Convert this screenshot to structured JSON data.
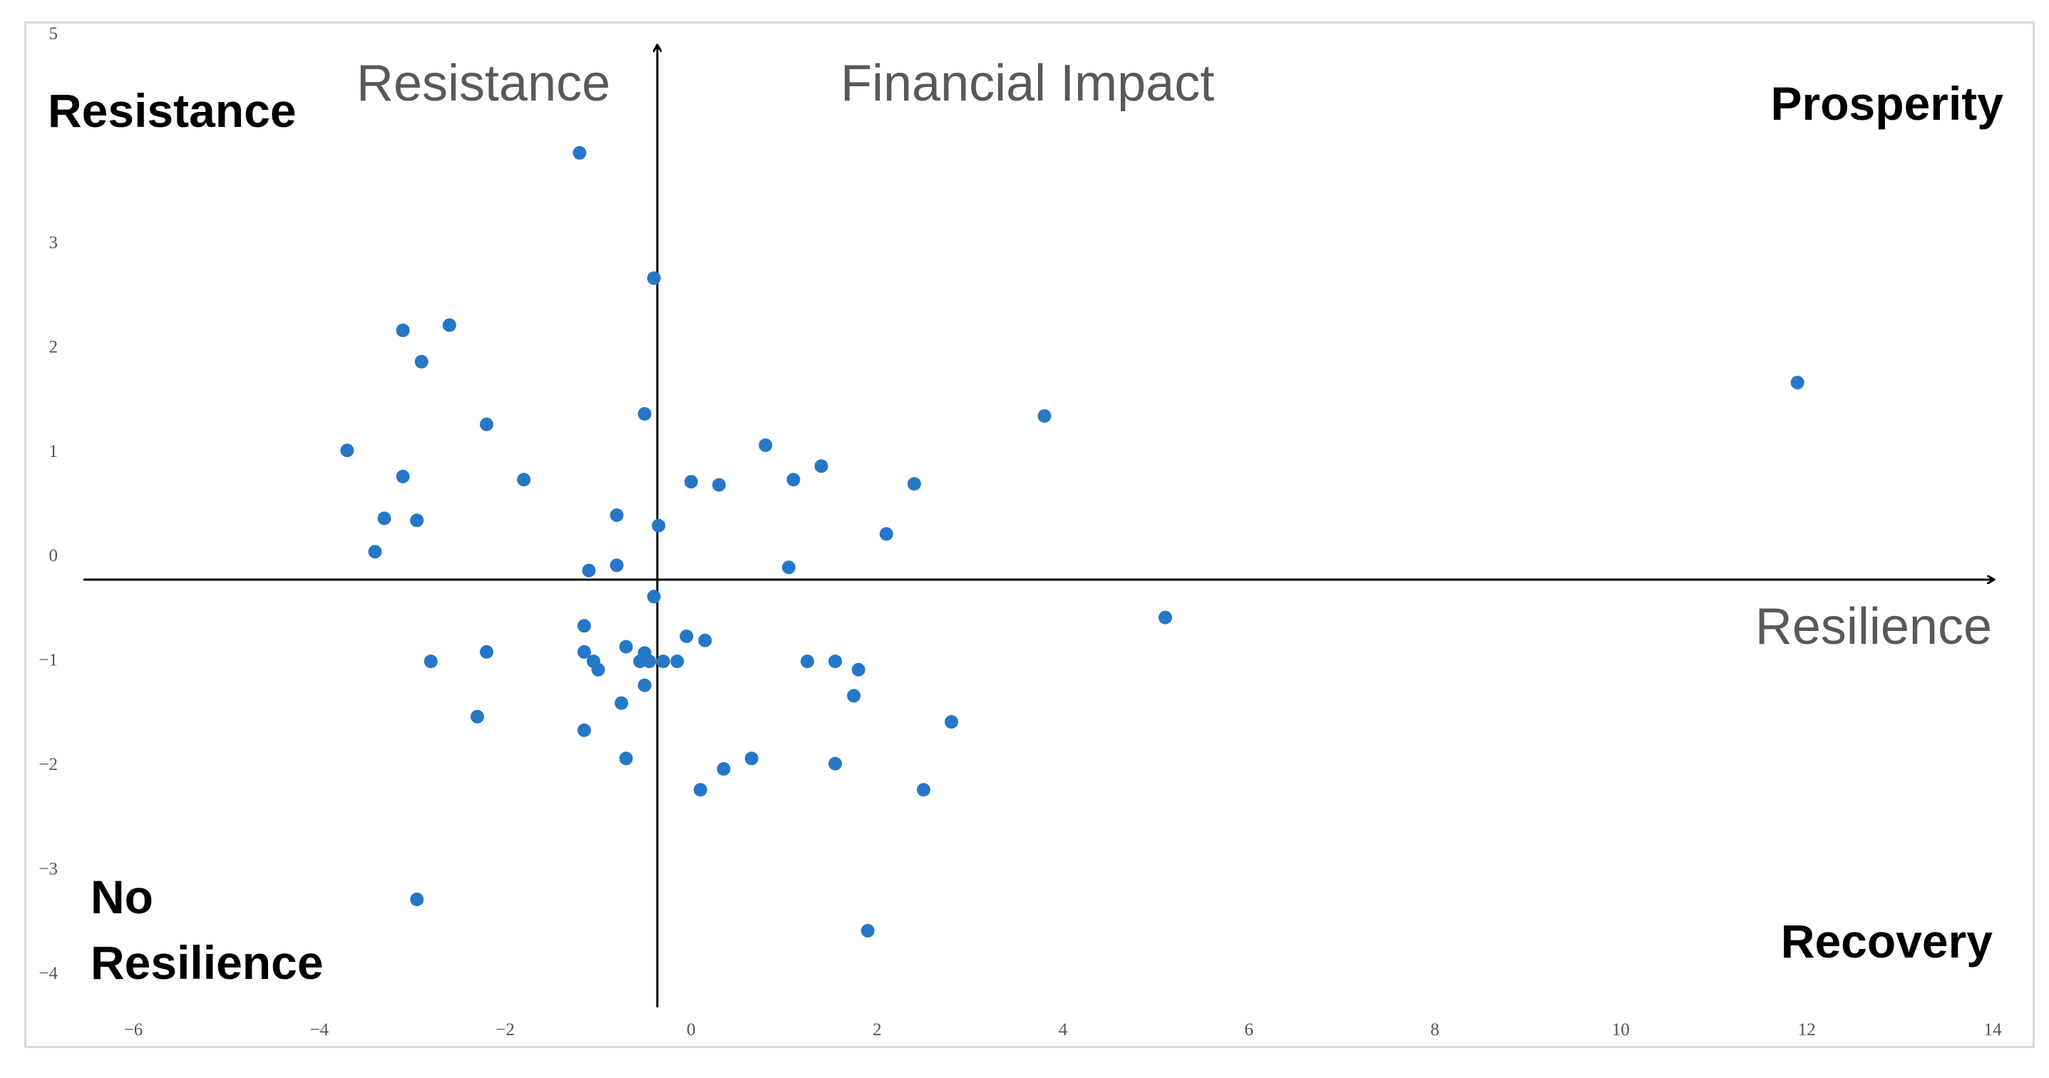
{
  "chart_data": {
    "type": "scatter",
    "title": "",
    "xlabel": "Resilience",
    "ylabel": "Financial Impact",
    "xlim": [
      -6,
      14
    ],
    "ylim": [
      -4,
      5
    ],
    "x_ticks": [
      -6,
      -4,
      -2,
      0,
      2,
      4,
      6,
      8,
      10,
      12,
      14
    ],
    "y_ticks": [
      -4,
      -3,
      -2,
      -1,
      0,
      1,
      2,
      3,
      5
    ],
    "tick_labels": {
      "x": [
        "−6",
        "−4",
        "−2",
        "0",
        "2",
        "4",
        "6",
        "8",
        "10",
        "12",
        "14"
      ],
      "y": [
        "−4",
        "−3",
        "−2",
        "−1",
        "0",
        "1",
        "2",
        "3",
        "5"
      ]
    },
    "grid": false,
    "point_color": "#2677c8",
    "annotations": {
      "top_left_small": "Resistance",
      "top_left_bold": "Resistance",
      "top_right_bold": "Prosperity",
      "bottom_left_bold_line1": "No",
      "bottom_left_bold_line2": "Resilience",
      "bottom_right_bold": "Recovery"
    },
    "series": [
      {
        "points": [
          [
            -1.2,
            3.85
          ],
          [
            -0.4,
            2.65
          ],
          [
            -2.6,
            2.2
          ],
          [
            -3.1,
            2.15
          ],
          [
            -2.9,
            1.85
          ],
          [
            -3.7,
            1.0
          ],
          [
            -2.2,
            1.25
          ],
          [
            -0.5,
            1.35
          ],
          [
            -3.1,
            0.75
          ],
          [
            -1.8,
            0.72
          ],
          [
            -3.3,
            0.35
          ],
          [
            -2.95,
            0.33
          ],
          [
            -0.8,
            0.38
          ],
          [
            -0.35,
            0.28
          ],
          [
            -3.4,
            0.03
          ],
          [
            0.0,
            0.7
          ],
          [
            0.3,
            0.67
          ],
          [
            0.8,
            1.05
          ],
          [
            1.1,
            0.72
          ],
          [
            1.4,
            0.85
          ],
          [
            2.4,
            0.68
          ],
          [
            2.1,
            0.2
          ],
          [
            3.8,
            1.33
          ],
          [
            11.9,
            1.65
          ],
          [
            -0.8,
            -0.1
          ],
          [
            -1.1,
            -0.15
          ],
          [
            -0.4,
            -0.4
          ],
          [
            1.05,
            -0.12
          ],
          [
            -1.15,
            -0.68
          ],
          [
            -1.15,
            -0.93
          ],
          [
            -0.7,
            -0.88
          ],
          [
            -0.5,
            -0.94
          ],
          [
            -2.2,
            -0.93
          ],
          [
            -2.8,
            -1.02
          ],
          [
            -1.05,
            -1.02
          ],
          [
            -0.55,
            -1.02
          ],
          [
            -0.45,
            -1.02
          ],
          [
            -0.3,
            -1.02
          ],
          [
            -0.15,
            -1.02
          ],
          [
            -1.0,
            -1.1
          ],
          [
            -0.5,
            -1.25
          ],
          [
            -0.75,
            -1.42
          ],
          [
            -2.3,
            -1.55
          ],
          [
            -1.15,
            -1.68
          ],
          [
            -0.7,
            -1.95
          ],
          [
            -0.05,
            -0.78
          ],
          [
            0.15,
            -0.82
          ],
          [
            1.25,
            -1.02
          ],
          [
            1.55,
            -1.02
          ],
          [
            1.8,
            -1.1
          ],
          [
            1.75,
            -1.35
          ],
          [
            2.8,
            -1.6
          ],
          [
            0.65,
            -1.95
          ],
          [
            0.35,
            -2.05
          ],
          [
            1.55,
            -2.0
          ],
          [
            0.1,
            -2.25
          ],
          [
            2.5,
            -2.25
          ],
          [
            5.1,
            -0.6
          ],
          [
            -2.95,
            -3.3
          ],
          [
            1.9,
            -3.6
          ]
        ]
      }
    ]
  }
}
